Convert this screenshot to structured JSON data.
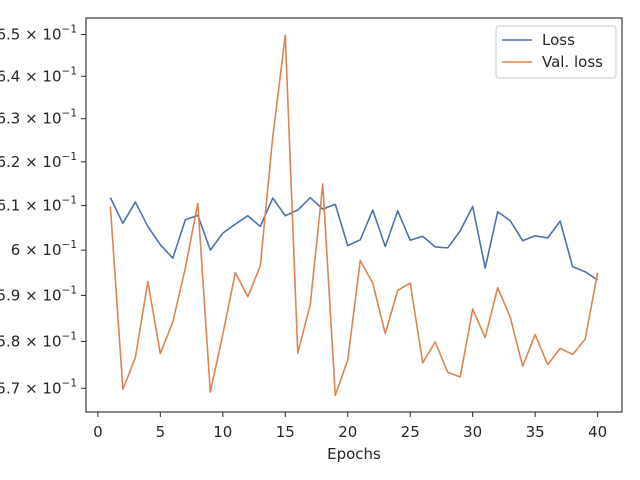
{
  "chart_data": {
    "type": "line",
    "title": "",
    "xlabel": "Epochs",
    "ylabel": "",
    "yscale": "log",
    "xlim": [
      -0.95,
      41.95
    ],
    "ylim": [
      0.565,
      0.654
    ],
    "x_ticks": [
      0,
      5,
      10,
      15,
      20,
      25,
      30,
      35,
      40
    ],
    "y_ticks": [
      {
        "value": 0.57,
        "mantissa": "5.7",
        "exp": "−1"
      },
      {
        "value": 0.58,
        "mantissa": "5.8",
        "exp": "−1"
      },
      {
        "value": 0.59,
        "mantissa": "5.9",
        "exp": "−1"
      },
      {
        "value": 0.6,
        "mantissa": "6",
        "exp": "−1"
      },
      {
        "value": 0.61,
        "mantissa": "6.1",
        "exp": "−1"
      },
      {
        "value": 0.62,
        "mantissa": "6.2",
        "exp": "−1"
      },
      {
        "value": 0.63,
        "mantissa": "6.3",
        "exp": "−1"
      },
      {
        "value": 0.64,
        "mantissa": "6.4",
        "exp": "−1"
      },
      {
        "value": 0.65,
        "mantissa": "6.5",
        "exp": "−1"
      }
    ],
    "grid": false,
    "legend_position": "top-right",
    "x": [
      1,
      2,
      3,
      4,
      5,
      6,
      7,
      8,
      9,
      10,
      11,
      12,
      13,
      14,
      15,
      16,
      17,
      18,
      19,
      20,
      21,
      22,
      23,
      24,
      25,
      26,
      27,
      28,
      29,
      30,
      31,
      32,
      33,
      34,
      35,
      36,
      37,
      38,
      39,
      40
    ],
    "series": [
      {
        "name": "Loss",
        "color": "#4c72b0",
        "values": [
          0.6118,
          0.606,
          0.6108,
          0.6053,
          0.6012,
          0.5982,
          0.6068,
          0.6078,
          0.6,
          0.6038,
          0.6058,
          0.6077,
          0.6053,
          0.6117,
          0.6077,
          0.609,
          0.6118,
          0.6092,
          0.6103,
          0.601,
          0.6023,
          0.609,
          0.6008,
          0.6088,
          0.6022,
          0.6031,
          0.6007,
          0.6005,
          0.6043,
          0.6098,
          0.596,
          0.6086,
          0.6066,
          0.6021,
          0.6032,
          0.6027,
          0.6065,
          0.5963,
          0.5952,
          0.5934
        ]
      },
      {
        "name": "Val. loss",
        "color": "#dd8452",
        "values": [
          0.6098,
          0.5698,
          0.5765,
          0.593,
          0.5774,
          0.5842,
          0.596,
          0.6105,
          0.5692,
          0.5815,
          0.595,
          0.5897,
          0.5965,
          0.6258,
          0.6498,
          0.5775,
          0.588,
          0.6149,
          0.5685,
          0.576,
          0.5977,
          0.5927,
          0.5817,
          0.5911,
          0.5927,
          0.5754,
          0.5799,
          0.5734,
          0.5724,
          0.587,
          0.5808,
          0.5917,
          0.5853,
          0.5747,
          0.5815,
          0.575,
          0.5785,
          0.5772,
          0.5805,
          0.595
        ]
      }
    ]
  }
}
